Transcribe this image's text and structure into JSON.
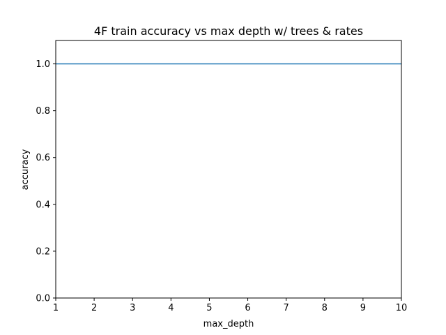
{
  "chart_data": {
    "type": "line",
    "title": "4F train accuracy vs max depth w/ trees & rates",
    "xlabel": "max_depth",
    "ylabel": "accuracy",
    "xlim": [
      1,
      10
    ],
    "ylim": [
      0,
      1.1
    ],
    "xticks": [
      1,
      2,
      3,
      4,
      5,
      6,
      7,
      8,
      9,
      10
    ],
    "yticks": [
      0.0,
      0.2,
      0.4,
      0.6,
      0.8,
      1.0
    ],
    "ytick_labels": [
      "0.0",
      "0.2",
      "0.4",
      "0.6",
      "0.8",
      "1.0"
    ],
    "grid": false,
    "series": [
      {
        "color": "#1f77b4",
        "x": [
          1,
          2,
          3,
          4,
          5,
          6,
          7,
          8,
          9,
          10
        ],
        "y": [
          1.0,
          1.0,
          1.0,
          1.0,
          1.0,
          1.0,
          1.0,
          1.0,
          1.0,
          1.0
        ]
      }
    ]
  }
}
